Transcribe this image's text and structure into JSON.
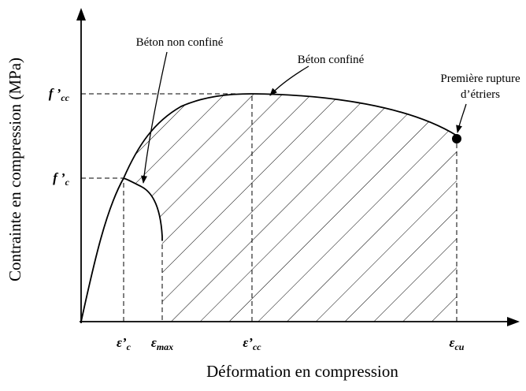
{
  "axes": {
    "y_title": "Contrainte en compression (MPa)",
    "x_title": "Déformation en compression"
  },
  "y_labels": [
    {
      "base": "f ’",
      "sub": "cc"
    },
    {
      "base": "f ’",
      "sub": "c"
    }
  ],
  "x_labels": [
    {
      "base": "ε’",
      "sub": "c"
    },
    {
      "base": "ε",
      "sub": "max"
    },
    {
      "base": "ε’",
      "sub": "cc"
    },
    {
      "base": "ε",
      "sub": "cu"
    }
  ],
  "annotations": {
    "unconfined": "Béton non confiné",
    "confined": "Béton confiné",
    "rupture": [
      "Première rupture",
      "d’étriers"
    ]
  }
}
